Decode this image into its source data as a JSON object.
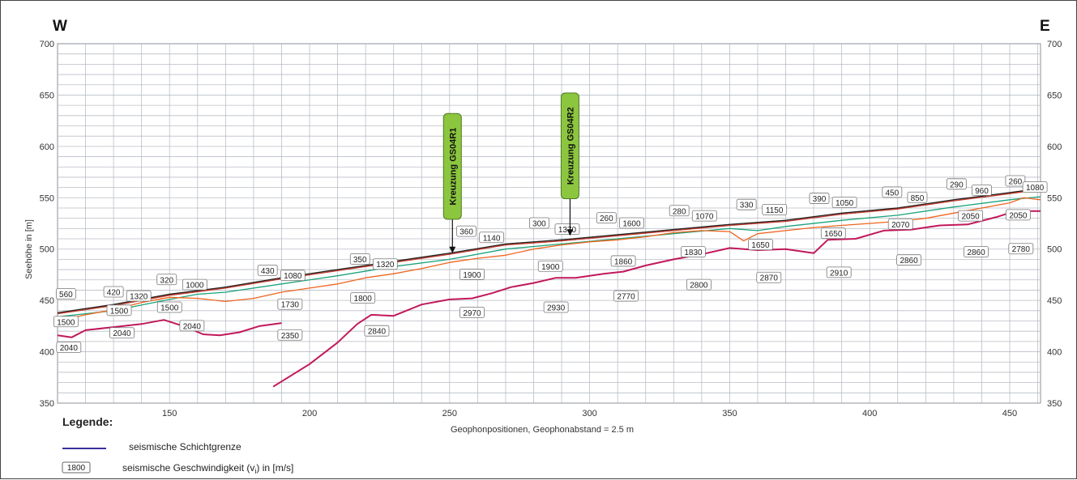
{
  "chart_data": {
    "type": "line",
    "title": "",
    "direction_left": "W",
    "direction_right": "E",
    "xlabel": "Geophonpositionen, Geophonabstand = 2.5 m",
    "ylabel": "Seehöhe in [m]",
    "xlim": [
      110,
      461
    ],
    "ylim": [
      350,
      700
    ],
    "x_ticks": [
      150,
      200,
      250,
      300,
      350,
      400,
      450
    ],
    "y_ticks": [
      350,
      400,
      450,
      500,
      550,
      600,
      650,
      700
    ],
    "grid": true,
    "series": [
      {
        "color": "#222222",
        "points": [
          [
            110,
            438
          ],
          [
            130,
            446
          ],
          [
            150,
            456
          ],
          [
            170,
            463
          ],
          [
            190,
            472
          ],
          [
            210,
            480
          ],
          [
            230,
            488
          ],
          [
            250,
            496
          ],
          [
            270,
            505
          ],
          [
            290,
            509
          ],
          [
            310,
            514
          ],
          [
            330,
            519
          ],
          [
            350,
            524
          ],
          [
            370,
            528
          ],
          [
            390,
            535
          ],
          [
            410,
            540
          ],
          [
            430,
            548
          ],
          [
            450,
            555
          ],
          [
            461,
            559
          ]
        ]
      },
      {
        "color": "#c0392b",
        "points": [
          [
            110,
            437
          ],
          [
            130,
            445
          ],
          [
            150,
            455
          ],
          [
            170,
            462
          ],
          [
            190,
            471
          ],
          [
            210,
            479
          ],
          [
            230,
            487
          ],
          [
            250,
            495
          ],
          [
            270,
            504
          ],
          [
            290,
            508
          ],
          [
            310,
            513
          ],
          [
            330,
            518
          ],
          [
            350,
            523
          ],
          [
            370,
            527
          ],
          [
            390,
            534
          ],
          [
            410,
            539
          ],
          [
            430,
            547
          ],
          [
            450,
            554
          ],
          [
            461,
            558
          ]
        ]
      },
      {
        "color": "#1aa37a",
        "points": [
          [
            110,
            434
          ],
          [
            130,
            440
          ],
          [
            150,
            451
          ],
          [
            160,
            456
          ],
          [
            170,
            458
          ],
          [
            190,
            466
          ],
          [
            210,
            474
          ],
          [
            230,
            483
          ],
          [
            250,
            490
          ],
          [
            270,
            500
          ],
          [
            290,
            505
          ],
          [
            310,
            510
          ],
          [
            330,
            515
          ],
          [
            350,
            520
          ],
          [
            360,
            518
          ],
          [
            370,
            522
          ],
          [
            390,
            528
          ],
          [
            410,
            533
          ],
          [
            430,
            541
          ],
          [
            450,
            548
          ],
          [
            461,
            551
          ]
        ]
      },
      {
        "color": "#f0641e",
        "points": [
          [
            110,
            430
          ],
          [
            120,
            436
          ],
          [
            130,
            441
          ],
          [
            140,
            448
          ],
          [
            150,
            453
          ],
          [
            160,
            452
          ],
          [
            170,
            449
          ],
          [
            180,
            452
          ],
          [
            190,
            458
          ],
          [
            200,
            462
          ],
          [
            210,
            466
          ],
          [
            220,
            472
          ],
          [
            230,
            476
          ],
          [
            240,
            481
          ],
          [
            250,
            487
          ],
          [
            260,
            491
          ],
          [
            270,
            494
          ],
          [
            280,
            500
          ],
          [
            290,
            504
          ],
          [
            300,
            507
          ],
          [
            310,
            509
          ],
          [
            320,
            512
          ],
          [
            330,
            516
          ],
          [
            340,
            518
          ],
          [
            350,
            517
          ],
          [
            355,
            508
          ],
          [
            360,
            515
          ],
          [
            370,
            518
          ],
          [
            380,
            521
          ],
          [
            390,
            523
          ],
          [
            400,
            525
          ],
          [
            410,
            527
          ],
          [
            420,
            530
          ],
          [
            430,
            535
          ],
          [
            440,
            540
          ],
          [
            450,
            545
          ],
          [
            455,
            550
          ],
          [
            461,
            548
          ]
        ]
      },
      {
        "color": "#c2185b",
        "points": [
          [
            110,
            416
          ],
          [
            115,
            414
          ],
          [
            120,
            421
          ],
          [
            130,
            424
          ],
          [
            140,
            427
          ],
          [
            148,
            431
          ],
          [
            155,
            425
          ],
          [
            162,
            417
          ],
          [
            168,
            416
          ],
          [
            175,
            419
          ],
          [
            182,
            425
          ],
          [
            190,
            428
          ]
        ]
      },
      {
        "color": "#c2185b",
        "points": [
          [
            187,
            366
          ],
          [
            200,
            388
          ],
          [
            210,
            409
          ],
          [
            217,
            427
          ],
          [
            222,
            436
          ],
          [
            230,
            435
          ],
          [
            240,
            446
          ],
          [
            250,
            451
          ],
          [
            258,
            452
          ],
          [
            265,
            457
          ],
          [
            272,
            463
          ],
          [
            280,
            467
          ],
          [
            288,
            472
          ],
          [
            295,
            472
          ],
          [
            305,
            476
          ],
          [
            312,
            478
          ],
          [
            320,
            484
          ],
          [
            330,
            490
          ],
          [
            340,
            495
          ],
          [
            350,
            501
          ],
          [
            360,
            499
          ],
          [
            370,
            500
          ],
          [
            380,
            496
          ],
          [
            385,
            509
          ],
          [
            395,
            510
          ],
          [
            405,
            518
          ],
          [
            415,
            519
          ],
          [
            425,
            523
          ],
          [
            435,
            524
          ],
          [
            445,
            531
          ],
          [
            452,
            537
          ],
          [
            461,
            537
          ]
        ]
      }
    ],
    "velocity_labels": [
      {
        "text": "560",
        "x": 113,
        "y": 456
      },
      {
        "text": "420",
        "x": 130,
        "y": 458
      },
      {
        "text": "1320",
        "x": 139,
        "y": 454
      },
      {
        "text": "320",
        "x": 149,
        "y": 470
      },
      {
        "text": "1000",
        "x": 159,
        "y": 465
      },
      {
        "text": "430",
        "x": 185,
        "y": 479
      },
      {
        "text": "1080",
        "x": 194,
        "y": 474
      },
      {
        "text": "350",
        "x": 218,
        "y": 490
      },
      {
        "text": "1320",
        "x": 227,
        "y": 485
      },
      {
        "text": "360",
        "x": 256,
        "y": 517
      },
      {
        "text": "1140",
        "x": 265,
        "y": 511
      },
      {
        "text": "300",
        "x": 282,
        "y": 525
      },
      {
        "text": "1370",
        "x": 292,
        "y": 519
      },
      {
        "text": "260",
        "x": 306,
        "y": 530
      },
      {
        "text": "1600",
        "x": 315,
        "y": 525
      },
      {
        "text": "280",
        "x": 332,
        "y": 537
      },
      {
        "text": "1070",
        "x": 341,
        "y": 532
      },
      {
        "text": "330",
        "x": 356,
        "y": 543
      },
      {
        "text": "1150",
        "x": 366,
        "y": 538
      },
      {
        "text": "390",
        "x": 382,
        "y": 549
      },
      {
        "text": "1050",
        "x": 391,
        "y": 545
      },
      {
        "text": "450",
        "x": 408,
        "y": 555
      },
      {
        "text": "850",
        "x": 417,
        "y": 550
      },
      {
        "text": "290",
        "x": 431,
        "y": 563
      },
      {
        "text": "960",
        "x": 440,
        "y": 557
      },
      {
        "text": "260",
        "x": 452,
        "y": 566
      },
      {
        "text": "1080",
        "x": 459,
        "y": 560
      },
      {
        "text": "1500",
        "x": 113,
        "y": 429
      },
      {
        "text": "1500",
        "x": 132,
        "y": 440
      },
      {
        "text": "1500",
        "x": 150,
        "y": 443
      },
      {
        "text": "1730",
        "x": 193,
        "y": 446
      },
      {
        "text": "1800",
        "x": 219,
        "y": 452
      },
      {
        "text": "1900",
        "x": 258,
        "y": 475
      },
      {
        "text": "1900",
        "x": 286,
        "y": 483
      },
      {
        "text": "1860",
        "x": 312,
        "y": 488
      },
      {
        "text": "1830",
        "x": 337,
        "y": 497
      },
      {
        "text": "1650",
        "x": 361,
        "y": 504
      },
      {
        "text": "1650",
        "x": 387,
        "y": 515
      },
      {
        "text": "2070",
        "x": 411,
        "y": 524
      },
      {
        "text": "2050",
        "x": 436,
        "y": 532
      },
      {
        "text": "2050",
        "x": 453,
        "y": 533
      },
      {
        "text": "2040",
        "x": 114,
        "y": 404
      },
      {
        "text": "2040",
        "x": 133,
        "y": 418
      },
      {
        "text": "2040",
        "x": 158,
        "y": 425
      },
      {
        "text": "2350",
        "x": 193,
        "y": 416
      },
      {
        "text": "2840",
        "x": 224,
        "y": 420
      },
      {
        "text": "2970",
        "x": 258,
        "y": 438
      },
      {
        "text": "2930",
        "x": 288,
        "y": 443
      },
      {
        "text": "2770",
        "x": 313,
        "y": 454
      },
      {
        "text": "2800",
        "x": 339,
        "y": 465
      },
      {
        "text": "2870",
        "x": 364,
        "y": 472
      },
      {
        "text": "2910",
        "x": 389,
        "y": 477
      },
      {
        "text": "2860",
        "x": 414,
        "y": 489
      },
      {
        "text": "2860",
        "x": 438,
        "y": 497
      },
      {
        "text": "2780",
        "x": 454,
        "y": 500
      }
    ],
    "markers": [
      {
        "text": "Kreuzung  GS04R1",
        "x": 251,
        "y_tip": 496,
        "y_top": 632,
        "y_bottom": 529
      },
      {
        "text": "Kreuzung  GS04R2",
        "x": 293,
        "y_tip": 513,
        "y_top": 652,
        "y_bottom": 549
      }
    ]
  },
  "legend": {
    "title": "Legende:",
    "line_text": "seismische Schichtgrenze",
    "line_color": "#3a2fa0",
    "box_sample": "1800",
    "box_text_a": "seismische Geschwindigkeit (v",
    "box_subscript": "i",
    "box_text_b": ") in [m/s]"
  },
  "colors": {
    "grid": "#b9bec6",
    "marker_fill": "#8cc63f",
    "marker_stroke": "#4c7a1e"
  }
}
